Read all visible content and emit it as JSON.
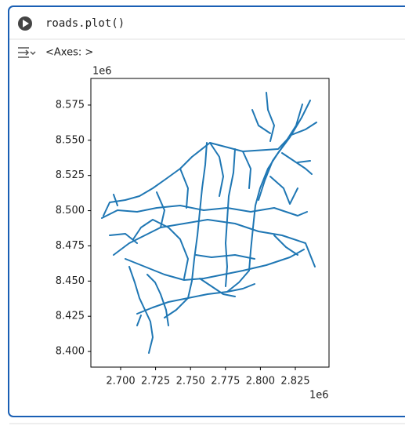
{
  "cell": {
    "code": "roads.plot()",
    "output": "<Axes: >"
  },
  "plot": {
    "x_offset": "1e6",
    "y_offset": "1e6",
    "xlim": [
      2.6787,
      2.8491
    ],
    "ylim": [
      8.3889,
      8.5939
    ],
    "xticks": [
      {
        "value": 2.7,
        "label": "2.700"
      },
      {
        "value": 2.725,
        "label": "2.725"
      },
      {
        "value": 2.75,
        "label": "2.750"
      },
      {
        "value": 2.775,
        "label": "2.775"
      },
      {
        "value": 2.8,
        "label": "2.800"
      },
      {
        "value": 2.825,
        "label": "2.825"
      }
    ],
    "yticks": [
      {
        "value": 8.4,
        "label": "8.400"
      },
      {
        "value": 8.425,
        "label": "8.425"
      },
      {
        "value": 8.45,
        "label": "8.450"
      },
      {
        "value": 8.475,
        "label": "8.475"
      },
      {
        "value": 8.5,
        "label": "8.500"
      },
      {
        "value": 8.525,
        "label": "8.525"
      },
      {
        "value": 8.55,
        "label": "8.550"
      },
      {
        "value": 8.575,
        "label": "8.575"
      }
    ]
  }
}
